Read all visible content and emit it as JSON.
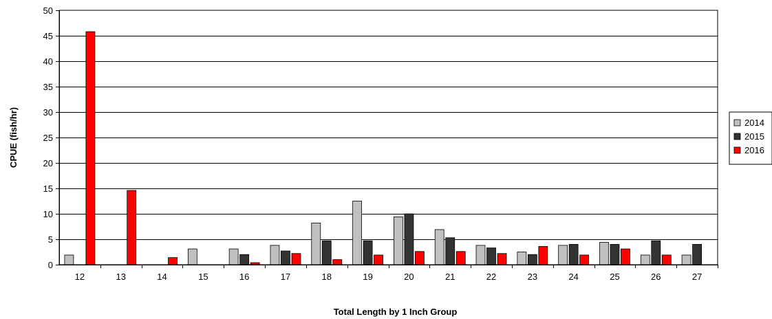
{
  "chart_data": {
    "type": "bar",
    "title": "",
    "xlabel": "Total Length by 1 Inch Group",
    "ylabel": "CPUE (fish/hr)",
    "ylim": [
      0,
      50
    ],
    "yticks": [
      0,
      5,
      10,
      15,
      20,
      25,
      30,
      35,
      40,
      45,
      50
    ],
    "grid": true,
    "legend_position": "right",
    "categories": [
      "12",
      "13",
      "14",
      "15",
      "16",
      "17",
      "18",
      "19",
      "20",
      "21",
      "22",
      "23",
      "24",
      "25",
      "26",
      "27"
    ],
    "series": [
      {
        "name": "2014",
        "color": "#c0c0c0",
        "values": [
          1.9,
          0,
          0,
          3.1,
          3.1,
          3.8,
          8.2,
          12.5,
          9.4,
          6.9,
          3.8,
          2.5,
          3.8,
          4.4,
          1.9,
          1.9
        ]
      },
      {
        "name": "2015",
        "color": "#333333",
        "values": [
          0,
          0,
          0,
          0,
          2.0,
          2.7,
          4.7,
          4.7,
          10.0,
          5.3,
          3.3,
          2.0,
          4.0,
          4.0,
          4.7,
          4.0
        ]
      },
      {
        "name": "2016",
        "color": "#ff0000",
        "values": [
          45.8,
          14.6,
          1.4,
          0,
          0.4,
          2.2,
          1.0,
          1.9,
          2.6,
          2.6,
          2.2,
          3.6,
          1.9,
          3.1,
          1.9,
          0
        ]
      }
    ]
  }
}
